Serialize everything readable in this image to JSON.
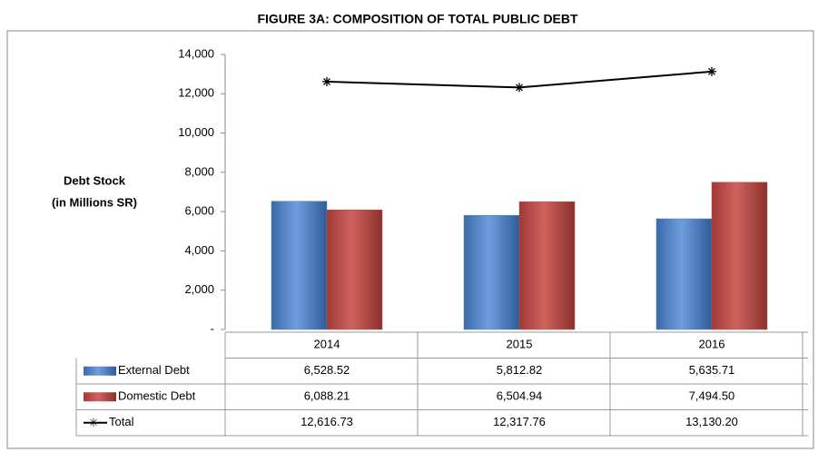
{
  "chart_data": {
    "type": "bar",
    "title": "FIGURE 3A: COMPOSITION OF TOTAL PUBLIC DEBT",
    "ylabel": [
      "Debt Stock",
      "(in Millions SR)"
    ],
    "categories": [
      "2014",
      "2015",
      "2016"
    ],
    "series": [
      {
        "name": "External Debt",
        "type": "bar",
        "color": "#4f81bd",
        "values": [
          6528.52,
          5812.82,
          5635.71
        ],
        "value_labels": [
          "6,528.52",
          "5,812.82",
          "5,635.71"
        ]
      },
      {
        "name": "Domestic Debt",
        "type": "bar",
        "color": "#c0504d",
        "values": [
          6088.21,
          6504.94,
          7494.5
        ],
        "value_labels": [
          "6,088.21",
          "6,504.94",
          "7,494.50"
        ]
      },
      {
        "name": "Total",
        "type": "line",
        "color": "#000000",
        "values": [
          12616.73,
          12317.76,
          13130.2
        ],
        "value_labels": [
          "12,616.73",
          "12,317.76",
          "13,130.20"
        ]
      }
    ],
    "ylim": [
      0,
      14000
    ],
    "yticks": [
      {
        "value": 0,
        "label": "-"
      },
      {
        "value": 2000,
        "label": "2,000"
      },
      {
        "value": 4000,
        "label": "4,000"
      },
      {
        "value": 6000,
        "label": "6,000"
      },
      {
        "value": 8000,
        "label": "8,000"
      },
      {
        "value": 10000,
        "label": "10,000"
      },
      {
        "value": 12000,
        "label": "12,000"
      },
      {
        "value": 14000,
        "label": "14,000"
      }
    ],
    "grid": false
  }
}
